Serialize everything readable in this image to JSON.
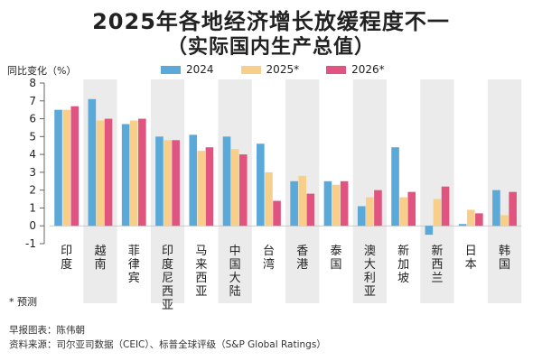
{
  "header": {
    "title_line1": "2025年各地经济增长放缓程度不一",
    "title_line2": "（实际国内生产总值）"
  },
  "footer": {
    "note": "* 预测",
    "credit": "早报图表：陈伟朝",
    "source": "资料来源：司尔亚司数据（CEIC）、标普全球评级（S&P Global Ratings）"
  },
  "chart_data": {
    "type": "bar",
    "ylabel": "同比变化（%）",
    "ylim": [
      -1,
      8
    ],
    "yticks": [
      "-1",
      "0",
      "1",
      "2",
      "3",
      "4",
      "5",
      "6",
      "7",
      "8"
    ],
    "grid": false,
    "legend_position": "top",
    "categories": [
      "印度",
      "越南",
      "菲律宾",
      "印度尼西亚",
      "马来西亚",
      "中国大陆",
      "台湾",
      "香港",
      "泰国",
      "澳大利亚",
      "新加坡",
      "新西兰",
      "日本",
      "韩国"
    ],
    "series": [
      {
        "name": "2024",
        "color": "#5aa9d8",
        "values": [
          6.5,
          7.1,
          5.7,
          5.0,
          5.1,
          5.0,
          4.6,
          2.5,
          2.5,
          1.1,
          4.4,
          -0.5,
          0.1,
          2.0
        ]
      },
      {
        "name": "2025*",
        "color": "#f8cf8a",
        "values": [
          6.5,
          5.9,
          5.9,
          4.8,
          4.2,
          4.3,
          3.0,
          2.8,
          2.3,
          1.6,
          1.6,
          1.5,
          0.9,
          0.6
        ]
      },
      {
        "name": "2026*",
        "color": "#e0547f",
        "values": [
          6.7,
          6.0,
          6.0,
          4.8,
          4.4,
          4.0,
          1.4,
          1.8,
          2.5,
          2.0,
          1.9,
          2.2,
          0.7,
          1.9
        ]
      }
    ]
  }
}
